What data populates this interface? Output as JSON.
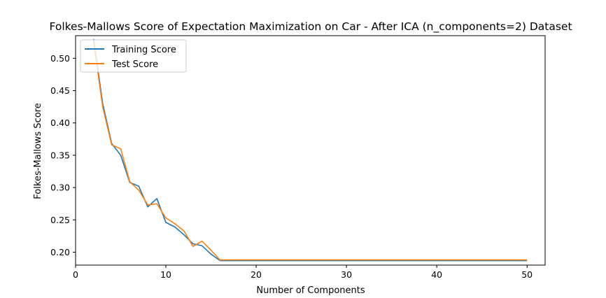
{
  "chart_data": {
    "type": "line",
    "title": "Folkes-Mallows Score of Expectation Maximization on Car - After ICA (n_components=2) Dataset",
    "xlabel": "Number of Components",
    "ylabel": "Folkes-Mallows Score",
    "xlim": [
      0,
      52
    ],
    "ylim": [
      0.18,
      0.535
    ],
    "xticks": [
      0,
      10,
      20,
      30,
      40,
      50
    ],
    "yticks": [
      0.2,
      0.25,
      0.3,
      0.35,
      0.4,
      0.45,
      0.5
    ],
    "grid": false,
    "legend_position": "top-left",
    "series": [
      {
        "name": "Training Score",
        "color": "#1f77b4",
        "x": [
          2,
          3,
          4,
          5,
          6,
          7,
          8,
          9,
          10,
          11,
          12,
          13,
          14,
          15,
          16,
          17,
          18,
          19,
          20,
          21,
          22,
          23,
          24,
          25,
          26,
          27,
          28,
          29,
          30,
          31,
          32,
          33,
          34,
          35,
          36,
          37,
          38,
          39,
          40,
          41,
          42,
          43,
          44,
          45,
          46,
          47,
          48,
          49,
          50
        ],
        "values": [
          0.53,
          0.43,
          0.368,
          0.35,
          0.308,
          0.302,
          0.27,
          0.283,
          0.246,
          0.239,
          0.227,
          0.213,
          0.21,
          0.197,
          0.187,
          0.187,
          0.187,
          0.187,
          0.187,
          0.187,
          0.187,
          0.187,
          0.187,
          0.187,
          0.187,
          0.187,
          0.187,
          0.187,
          0.187,
          0.187,
          0.187,
          0.187,
          0.187,
          0.187,
          0.187,
          0.187,
          0.187,
          0.187,
          0.187,
          0.187,
          0.187,
          0.187,
          0.187,
          0.187,
          0.187,
          0.187,
          0.187,
          0.187,
          0.187
        ]
      },
      {
        "name": "Test Score",
        "color": "#ff7f0e",
        "x": [
          2,
          3,
          4,
          5,
          6,
          7,
          8,
          9,
          10,
          11,
          12,
          13,
          14,
          15,
          16,
          17,
          18,
          19,
          20,
          21,
          22,
          23,
          24,
          25,
          26,
          27,
          28,
          29,
          30,
          31,
          32,
          33,
          34,
          35,
          36,
          37,
          38,
          39,
          40,
          41,
          42,
          43,
          44,
          45,
          46,
          47,
          48,
          49,
          50
        ],
        "values": [
          0.525,
          0.425,
          0.366,
          0.36,
          0.309,
          0.296,
          0.273,
          0.275,
          0.253,
          0.244,
          0.233,
          0.209,
          0.217,
          0.203,
          0.188,
          0.188,
          0.188,
          0.188,
          0.188,
          0.188,
          0.188,
          0.188,
          0.188,
          0.188,
          0.188,
          0.188,
          0.188,
          0.188,
          0.188,
          0.188,
          0.188,
          0.188,
          0.188,
          0.188,
          0.188,
          0.188,
          0.188,
          0.188,
          0.188,
          0.188,
          0.188,
          0.188,
          0.188,
          0.188,
          0.188,
          0.188,
          0.188,
          0.188,
          0.188
        ]
      }
    ]
  }
}
